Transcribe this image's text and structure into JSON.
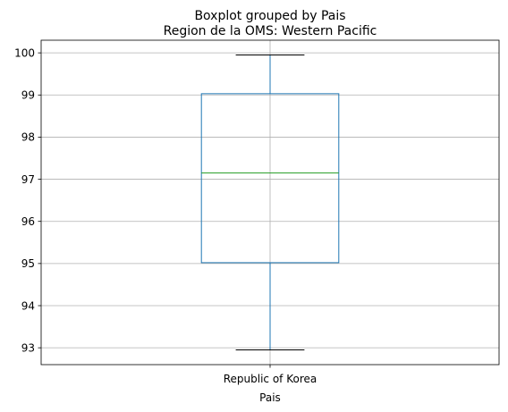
{
  "chart_data": {
    "type": "boxplot",
    "suptitle": "Boxplot grouped by Pais",
    "title": "Region de la OMS: Western Pacific",
    "xlabel": "Pais",
    "ylabel": "",
    "categories": [
      "Republic of Korea"
    ],
    "boxes": [
      {
        "category": "Republic of Korea",
        "whisker_low": 92.95,
        "q1": 95.02,
        "median": 97.15,
        "q3": 99.03,
        "whisker_high": 99.95
      }
    ],
    "ylim": [
      92.6,
      100.3
    ],
    "yticks": [
      93,
      94,
      95,
      96,
      97,
      98,
      99,
      100
    ],
    "grid": true,
    "colors": {
      "box": "#1f77b4",
      "median": "#2ca02c",
      "grid": "#b0b0b0"
    }
  }
}
